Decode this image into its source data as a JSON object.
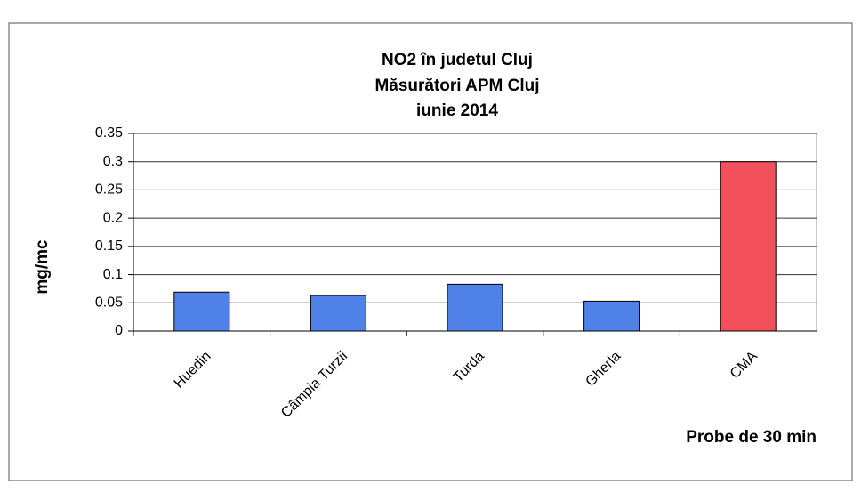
{
  "chart_data": {
    "type": "bar",
    "title": "NO2 în judetul Cluj",
    "subtitle": [
      "Măsurători APM Cluj",
      "iunie 2014"
    ],
    "y_label": "mg/mc",
    "x_label": "Probe de 30 min",
    "categories": [
      "Huedin",
      "Câmpia Turzii",
      "Turda",
      "Gherla",
      "CMA"
    ],
    "values": [
      0.069,
      0.063,
      0.083,
      0.053,
      0.3
    ],
    "colors": [
      "#4f81e8",
      "#4f81e8",
      "#4f81e8",
      "#4f81e8",
      "#f2505a"
    ],
    "ylim": [
      0,
      0.35
    ],
    "yticks": [
      0,
      0.05,
      0.1,
      0.15,
      0.2,
      0.25,
      0.3,
      0.35
    ],
    "grid": true
  }
}
